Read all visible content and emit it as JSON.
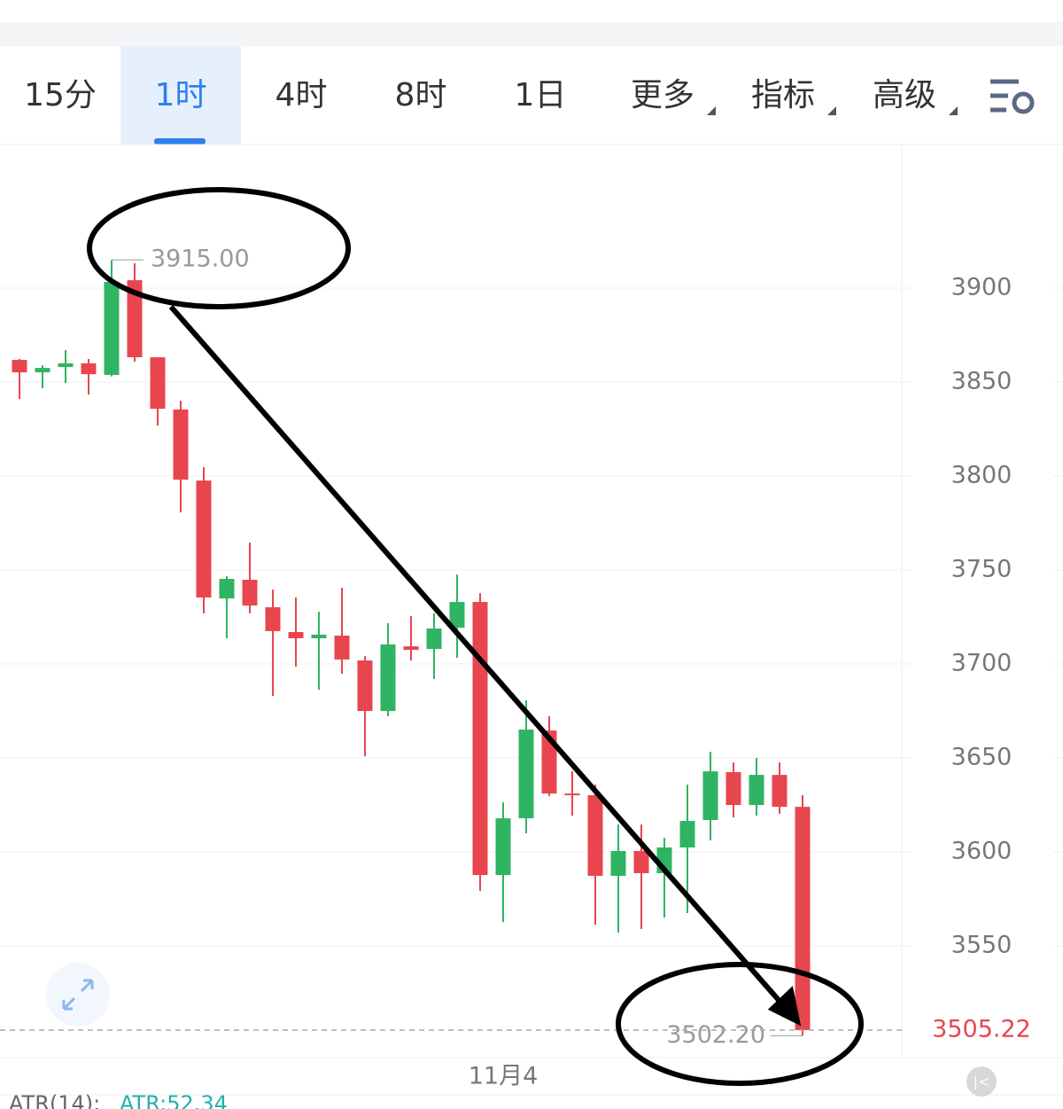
{
  "tabs": [
    "15分",
    "1时",
    "4时",
    "8时",
    "1日",
    "更多",
    "指标",
    "高级"
  ],
  "active_tab": 1,
  "chart_data": {
    "type": "candlestick",
    "categories": [
      null,
      null,
      null,
      null,
      null,
      null,
      null,
      null,
      null,
      null,
      null,
      null,
      null,
      null,
      null,
      null,
      null,
      null,
      null,
      null,
      null,
      "11月4",
      null,
      null,
      null,
      null,
      null,
      null,
      null,
      null,
      null,
      null,
      null,
      null,
      null
    ],
    "series": [
      {
        "up_color": "#2fb463",
        "down_color": "#e8464f",
        "open": [
          3861.8,
          3855.2,
          3858.0,
          3860.0,
          3853.8,
          3904.2,
          3863.2,
          3835.4,
          3797.6,
          3734.9,
          3744.8,
          3730.2,
          3717.0,
          3713.7,
          3715.1,
          3701.9,
          3675.0,
          3709.4,
          3708.0,
          3719.3,
          3733.0,
          3587.7,
          3617.9,
          3664.6,
          3631.1,
          3630.2,
          3587.3,
          3600.5,
          3588.7,
          3602.4,
          3617.0,
          3642.5,
          3625.0,
          3641.0,
          3624.0
        ],
        "high": [
          3862.3,
          3858.9,
          3867.0,
          3862.3,
          3915.0,
          3913.2,
          3863.2,
          3840.1,
          3804.7,
          3746.7,
          3764.6,
          3739.6,
          3735.4,
          3727.8,
          3740.6,
          3704.2,
          3721.7,
          3725.5,
          3726.9,
          3747.6,
          3737.7,
          3626.4,
          3680.7,
          3672.2,
          3642.9,
          3635.8,
          3614.6,
          3614.6,
          3607.5,
          3635.8,
          3653.3,
          3647.6,
          3650.0,
          3647.6,
          3630.2
        ],
        "low": [
          3841.0,
          3846.7,
          3849.5,
          3843.4,
          3853.0,
          3860.8,
          3826.9,
          3780.7,
          3726.9,
          3713.7,
          3726.9,
          3683.0,
          3698.6,
          3686.3,
          3694.8,
          3650.9,
          3672.2,
          3701.9,
          3692.0,
          3703.3,
          3579.2,
          3562.7,
          3609.9,
          3629.7,
          3619.3,
          3561.3,
          3557.1,
          3559.0,
          3565.1,
          3567.5,
          3606.1,
          3618.4,
          3619.3,
          3620.3,
          3502.2
        ],
        "close": [
          3855.2,
          3857.5,
          3860.0,
          3854.2,
          3903.3,
          3863.2,
          3835.8,
          3798.1,
          3735.4,
          3745.3,
          3731.1,
          3717.5,
          3713.7,
          3715.6,
          3702.4,
          3675.0,
          3710.4,
          3707.5,
          3718.9,
          3733.0,
          3587.7,
          3617.9,
          3665.1,
          3631.1,
          3630.2,
          3587.3,
          3600.5,
          3588.7,
          3602.4,
          3616.5,
          3642.9,
          3625.0,
          3641.0,
          3624.0,
          3505.22
        ]
      }
    ],
    "ylim": [
      3490.6,
      3976.4
    ],
    "yticks": [
      3550,
      3600,
      3650,
      3700,
      3750,
      3800,
      3850,
      3900
    ],
    "grid": true,
    "max_label": {
      "value": 3915,
      "label": "3915.00"
    },
    "min_label": {
      "value": 3502.2,
      "label": "3502.20"
    },
    "last_price": 3505.22
  },
  "indicator": {
    "name": "ATR(14):",
    "value": "ATR:52.34"
  }
}
